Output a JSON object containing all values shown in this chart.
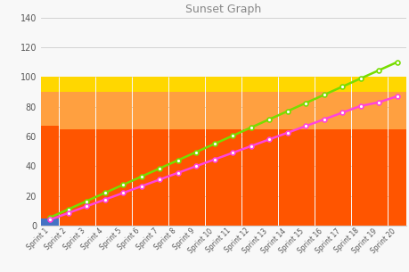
{
  "title": "Sunset Graph",
  "sprints": [
    "Sprint 1",
    "Sprint 2",
    "Sprint 3",
    "Sprint 4",
    "Sprint 5",
    "Sprint 6",
    "Sprint 7",
    "Sprint 8",
    "Sprint 9",
    "Sprint 10",
    "Sprint 11",
    "Sprint 12",
    "Sprint 13",
    "Sprint 14",
    "Sprint 15",
    "Sprint 16",
    "Sprint 17",
    "Sprint 18",
    "Sprint 19",
    "Sprint 20"
  ],
  "bar_blue": [
    5,
    0,
    0,
    0,
    0,
    0,
    0,
    0,
    0,
    0,
    0,
    0,
    0,
    0,
    0,
    0,
    0,
    0,
    0,
    0
  ],
  "bar_orange": [
    62,
    65,
    65,
    65,
    65,
    65,
    65,
    65,
    65,
    65,
    65,
    65,
    65,
    65,
    65,
    65,
    65,
    65,
    65,
    65
  ],
  "bar_light_orange": [
    23,
    25,
    25,
    25,
    25,
    25,
    25,
    25,
    25,
    25,
    25,
    25,
    25,
    25,
    25,
    25,
    25,
    25,
    25,
    25
  ],
  "bar_yellow": [
    10,
    10,
    10,
    10,
    10,
    10,
    10,
    10,
    10,
    10,
    10,
    10,
    10,
    10,
    10,
    10,
    10,
    10,
    10,
    10
  ],
  "green_line": [
    5.5,
    11,
    16.5,
    22,
    27.5,
    33,
    38.5,
    44,
    49.5,
    55,
    60.5,
    66,
    71.5,
    77,
    82.5,
    88,
    93.5,
    99,
    104.5,
    110
  ],
  "magenta_line": [
    4,
    8.5,
    13,
    17.5,
    22,
    26.5,
    31,
    35.5,
    40,
    44.5,
    49,
    53.5,
    58,
    62.5,
    67,
    71.5,
    76,
    80.5,
    83,
    87
  ],
  "ylim": [
    0,
    140
  ],
  "yticks": [
    0,
    20,
    40,
    60,
    80,
    100,
    120,
    140
  ],
  "color_blue": "#4472C4",
  "color_orange": "#FF5500",
  "color_light_orange": "#FFA040",
  "color_yellow": "#FFD700",
  "color_green": "#77DD00",
  "color_magenta": "#FF44DD",
  "bg_color": "#F8F8F8",
  "plot_bg": "#F8F8F8",
  "grid_color": "#CCCCCC",
  "title_fontsize": 9,
  "bar_width": 0.98
}
